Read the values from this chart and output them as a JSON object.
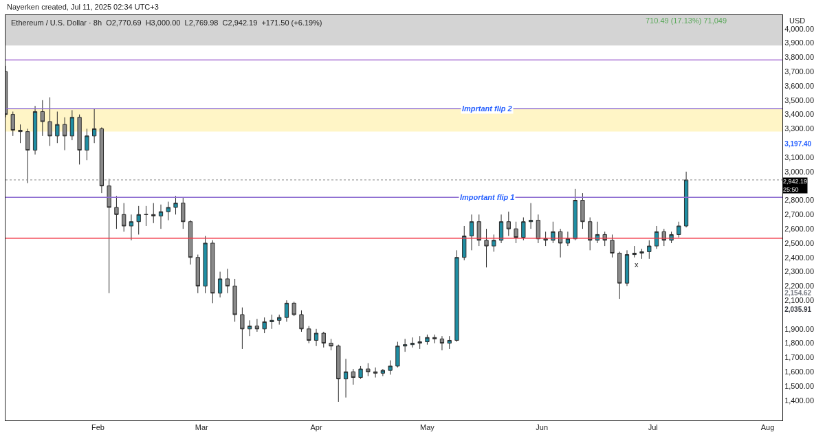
{
  "chart_data": {
    "type": "candlestick",
    "title": "Ethereum / U.S. Dollar · 8h  O2,770.69  H3,000.00  L2,769.98  C2,942.19  +171.50 (+6.19%)",
    "annotations": [
      "Nayerken created, Jul 11, 2025 02:34 UTC+3",
      "710.49 (17.13%) 71,049",
      "USD",
      "x"
    ],
    "x": [
      "2025-01-07",
      "2025-01-09",
      "2025-01-11",
      "2025-01-13",
      "2025-01-15",
      "2025-01-17",
      "2025-01-19",
      "2025-01-21",
      "2025-01-23",
      "2025-01-25",
      "2025-01-27",
      "2025-01-29",
      "2025-01-31",
      "2025-02-02",
      "2025-02-04",
      "2025-02-06",
      "2025-02-08",
      "2025-02-10",
      "2025-02-12",
      "2025-02-14",
      "2025-02-16",
      "2025-02-18",
      "2025-02-20",
      "2025-02-22",
      "2025-02-24",
      "2025-02-26",
      "2025-02-28",
      "2025-03-02",
      "2025-03-04",
      "2025-03-06",
      "2025-03-08",
      "2025-03-10",
      "2025-03-12",
      "2025-03-14",
      "2025-03-16",
      "2025-03-18",
      "2025-03-20",
      "2025-03-22",
      "2025-03-24",
      "2025-03-26",
      "2025-03-28",
      "2025-03-30",
      "2025-04-01",
      "2025-04-03",
      "2025-04-05",
      "2025-04-07",
      "2025-04-09",
      "2025-04-11",
      "2025-04-13",
      "2025-04-15",
      "2025-04-17",
      "2025-04-19",
      "2025-04-21",
      "2025-04-23",
      "2025-04-25",
      "2025-04-27",
      "2025-04-29",
      "2025-05-01",
      "2025-05-03",
      "2025-05-05",
      "2025-05-07",
      "2025-05-09",
      "2025-05-11",
      "2025-05-13",
      "2025-05-15",
      "2025-05-17",
      "2025-05-19",
      "2025-05-21",
      "2025-05-23",
      "2025-05-25",
      "2025-05-27",
      "2025-05-29",
      "2025-05-31",
      "2025-06-02",
      "2025-06-04",
      "2025-06-06",
      "2025-06-08",
      "2025-06-10",
      "2025-06-12",
      "2025-06-14",
      "2025-06-16",
      "2025-06-18",
      "2025-06-20",
      "2025-06-22",
      "2025-06-24",
      "2025-06-26",
      "2025-06-28",
      "2025-06-30",
      "2025-07-02",
      "2025-07-04",
      "2025-07-06",
      "2025-07-08",
      "2025-07-10"
    ],
    "ohlc": [
      [
        3700,
        3740,
        3380,
        3400
      ],
      [
        3400,
        3420,
        3250,
        3290
      ],
      [
        3290,
        3330,
        3200,
        3280
      ],
      [
        3280,
        3300,
        2920,
        3150
      ],
      [
        3150,
        3460,
        3120,
        3420
      ],
      [
        3420,
        3500,
        3250,
        3350
      ],
      [
        3350,
        3520,
        3180,
        3250
      ],
      [
        3250,
        3420,
        3200,
        3330
      ],
      [
        3330,
        3380,
        3150,
        3250
      ],
      [
        3250,
        3430,
        3220,
        3380
      ],
      [
        3380,
        3400,
        3050,
        3150
      ],
      [
        3150,
        3300,
        3080,
        3250
      ],
      [
        3250,
        3440,
        3200,
        3300
      ],
      [
        3300,
        3310,
        2850,
        2900
      ],
      [
        2900,
        2950,
        2150,
        2750
      ],
      [
        2750,
        2830,
        2600,
        2700
      ],
      [
        2700,
        2780,
        2580,
        2620
      ],
      [
        2620,
        2700,
        2520,
        2650
      ],
      [
        2650,
        2760,
        2560,
        2700
      ],
      [
        2700,
        2760,
        2620,
        2700
      ],
      [
        2700,
        2780,
        2640,
        2690
      ],
      [
        2690,
        2770,
        2600,
        2720
      ],
      [
        2720,
        2790,
        2660,
        2750
      ],
      [
        2750,
        2830,
        2700,
        2780
      ],
      [
        2780,
        2820,
        2600,
        2650
      ],
      [
        2650,
        2660,
        2350,
        2400
      ],
      [
        2400,
        2420,
        2150,
        2200
      ],
      [
        2200,
        2550,
        2150,
        2500
      ],
      [
        2500,
        2520,
        2080,
        2150
      ],
      [
        2150,
        2300,
        2120,
        2250
      ],
      [
        2250,
        2320,
        2150,
        2200
      ],
      [
        2200,
        2250,
        1950,
        2000
      ],
      [
        2000,
        2050,
        1760,
        1900
      ],
      [
        1900,
        1960,
        1850,
        1920
      ],
      [
        1920,
        1970,
        1880,
        1900
      ],
      [
        1900,
        1980,
        1870,
        1950
      ],
      [
        1950,
        2000,
        1900,
        1960
      ],
      [
        1960,
        2000,
        1930,
        1980
      ],
      [
        1980,
        2100,
        1950,
        2080
      ],
      [
        2080,
        2090,
        1990,
        2000
      ],
      [
        2000,
        2030,
        1880,
        1900
      ],
      [
        1900,
        1920,
        1800,
        1820
      ],
      [
        1820,
        1900,
        1780,
        1870
      ],
      [
        1870,
        1880,
        1770,
        1800
      ],
      [
        1800,
        1830,
        1750,
        1780
      ],
      [
        1780,
        1790,
        1390,
        1550
      ],
      [
        1550,
        1690,
        1420,
        1600
      ],
      [
        1600,
        1620,
        1510,
        1560
      ],
      [
        1560,
        1640,
        1550,
        1620
      ],
      [
        1620,
        1660,
        1570,
        1600
      ],
      [
        1600,
        1630,
        1560,
        1590
      ],
      [
        1590,
        1620,
        1570,
        1610
      ],
      [
        1610,
        1680,
        1580,
        1640
      ],
      [
        1640,
        1810,
        1630,
        1780
      ],
      [
        1780,
        1830,
        1740,
        1790
      ],
      [
        1790,
        1840,
        1770,
        1800
      ],
      [
        1800,
        1850,
        1760,
        1810
      ],
      [
        1810,
        1860,
        1790,
        1840
      ],
      [
        1840,
        1860,
        1800,
        1830
      ],
      [
        1830,
        1850,
        1750,
        1800
      ],
      [
        1800,
        1850,
        1760,
        1820
      ],
      [
        1820,
        2450,
        1810,
        2400
      ],
      [
        2400,
        2620,
        2380,
        2550
      ],
      [
        2550,
        2700,
        2450,
        2650
      ],
      [
        2650,
        2700,
        2480,
        2520
      ],
      [
        2520,
        2600,
        2330,
        2480
      ],
      [
        2480,
        2560,
        2440,
        2520
      ],
      [
        2520,
        2700,
        2500,
        2650
      ],
      [
        2650,
        2720,
        2550,
        2600
      ],
      [
        2600,
        2650,
        2500,
        2540
      ],
      [
        2540,
        2680,
        2520,
        2650
      ],
      [
        2650,
        2780,
        2600,
        2660
      ],
      [
        2660,
        2700,
        2500,
        2530
      ],
      [
        2530,
        2580,
        2480,
        2520
      ],
      [
        2520,
        2650,
        2500,
        2580
      ],
      [
        2580,
        2600,
        2400,
        2500
      ],
      [
        2500,
        2580,
        2480,
        2530
      ],
      [
        2530,
        2880,
        2520,
        2800
      ],
      [
        2800,
        2850,
        2600,
        2650
      ],
      [
        2650,
        2680,
        2450,
        2520
      ],
      [
        2520,
        2650,
        2500,
        2560
      ],
      [
        2560,
        2580,
        2480,
        2520
      ],
      [
        2520,
        2560,
        2400,
        2430
      ],
      [
        2430,
        2440,
        2110,
        2220
      ],
      [
        2220,
        2450,
        2200,
        2420
      ],
      [
        2420,
        2480,
        2400,
        2430
      ],
      [
        2430,
        2460,
        2390,
        2440
      ],
      [
        2440,
        2520,
        2390,
        2480
      ],
      [
        2480,
        2620,
        2460,
        2580
      ],
      [
        2580,
        2600,
        2480,
        2520
      ],
      [
        2520,
        2580,
        2500,
        2560
      ],
      [
        2560,
        2650,
        2540,
        2620
      ],
      [
        2620,
        3000,
        2610,
        2942.19
      ]
    ],
    "xlim": [
      "2025-01-07",
      "2025-08-05"
    ],
    "xticks": [
      {
        "value": "2025-02-01",
        "label": "Feb"
      },
      {
        "value": "2025-03-01",
        "label": "Mar"
      },
      {
        "value": "2025-04-01",
        "label": "Apr"
      },
      {
        "value": "2025-05-01",
        "label": "May"
      },
      {
        "value": "2025-06-01",
        "label": "Jun"
      },
      {
        "value": "2025-07-01",
        "label": "Jul"
      },
      {
        "value": "2025-08-01",
        "label": "Aug"
      }
    ],
    "ylim": [
      1260,
      4095
    ],
    "yticks": [
      {
        "value": 1400,
        "label": "1,400.00"
      },
      {
        "value": 1500,
        "label": "1,500.00"
      },
      {
        "value": 1600,
        "label": "1,600.00"
      },
      {
        "value": 1700,
        "label": "1,700.00"
      },
      {
        "value": 1800,
        "label": "1,800.00"
      },
      {
        "value": 1900,
        "label": "1,900.00"
      },
      {
        "value": 2035.91,
        "label": "2,035.91"
      },
      {
        "value": 2100,
        "label": "2,100.00"
      },
      {
        "value": 2154.62,
        "label": "2,154.62"
      },
      {
        "value": 2200,
        "label": "2,200.00"
      },
      {
        "value": 2300,
        "label": "2,300.00"
      },
      {
        "value": 2400,
        "label": "2,400.00"
      },
      {
        "value": 2500,
        "label": "2,500.00"
      },
      {
        "value": 2600,
        "label": "2,600.00"
      },
      {
        "value": 2700,
        "label": "2,700.00"
      },
      {
        "value": 2800,
        "label": "2,800.00"
      },
      {
        "value": 3000,
        "label": "3,000.00"
      },
      {
        "value": 3100,
        "label": "3,100.00"
      },
      {
        "value": 3197.4,
        "label": "3,197.40"
      },
      {
        "value": 3300,
        "label": "3,300.00"
      },
      {
        "value": 3400,
        "label": "3,400.00"
      },
      {
        "value": 3500,
        "label": "3,500.00"
      },
      {
        "value": 3600,
        "label": "3,600.00"
      },
      {
        "value": 3700,
        "label": "3,700.00"
      },
      {
        "value": 3800,
        "label": "3,800.00"
      },
      {
        "value": 3900,
        "label": "3,900.00"
      },
      {
        "value": 4000,
        "label": "4,000.00"
      }
    ],
    "ref_lines": [
      {
        "axis": "y",
        "value": 3782,
        "color": "#b07cd8"
      },
      {
        "axis": "y",
        "value": 3440,
        "label": "Imprtant flip 2",
        "color": "#8e6fd1"
      },
      {
        "axis": "y",
        "value": 2942.19,
        "label": "2,942.19\n25:50",
        "color": "#888888",
        "line_style": "dotted"
      },
      {
        "axis": "y",
        "value": 2820,
        "label": "Important flip 1",
        "color": "#8e6fd1"
      },
      {
        "axis": "y",
        "value": 2535,
        "color": "#f23645"
      }
    ],
    "bands": [
      {
        "axis": "y",
        "from": 3280,
        "to": 3440,
        "color": "#fff5c6"
      },
      {
        "axis": "y",
        "from": 3882,
        "to": 4095,
        "color": "#d4d4d4"
      }
    ],
    "grid": false
  }
}
